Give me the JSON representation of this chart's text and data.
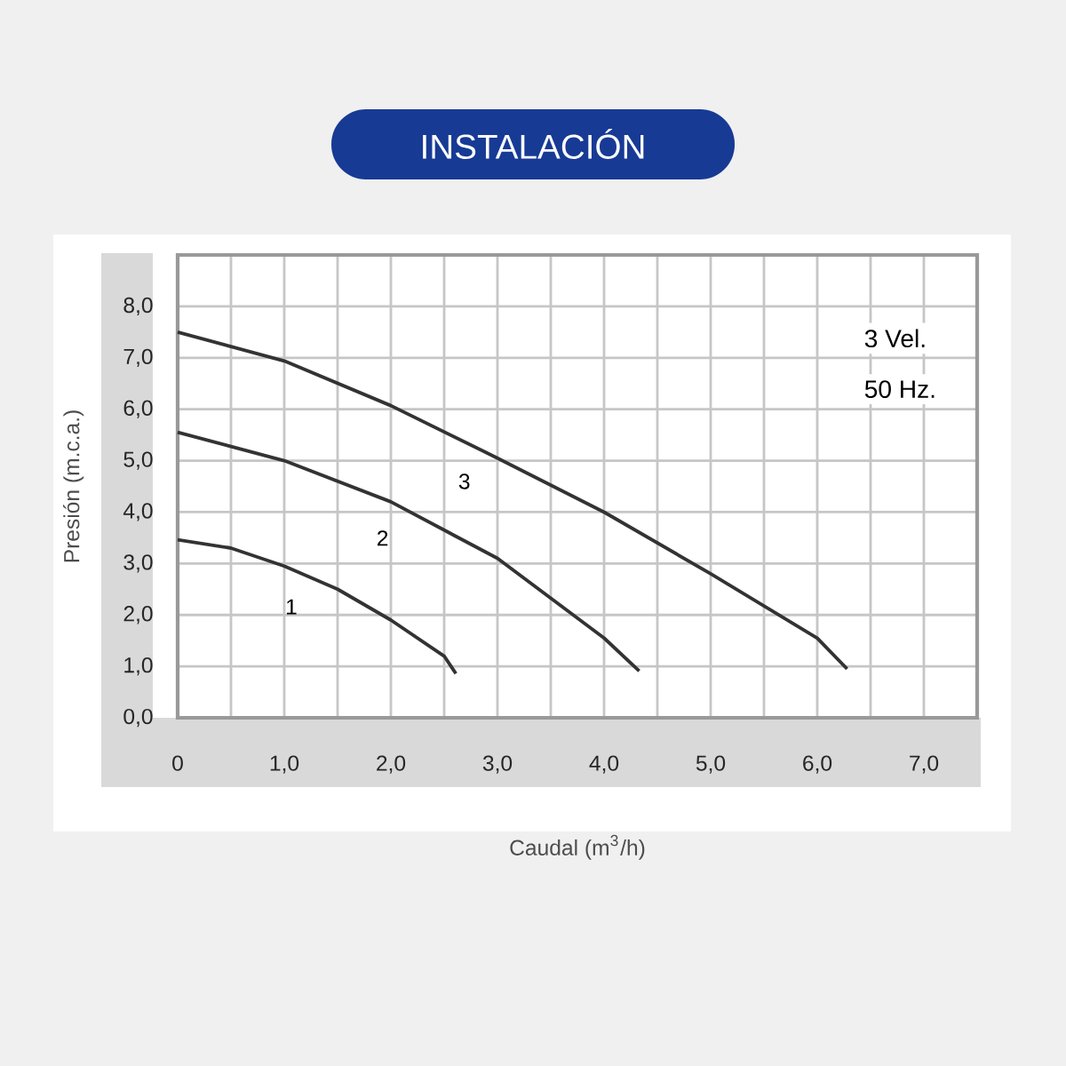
{
  "chart_data": {
    "type": "line",
    "title": "INSTALACIÓN",
    "xlabel": "Caudal (m$^{3}$/h)",
    "ylabel": "Presión (m.c.a.)",
    "series": [
      {
        "name": "1",
        "color": "#333333",
        "x": [
          0,
          0.5,
          1.0,
          1.5,
          2.0,
          2.5,
          2.61
        ],
        "values": [
          3.46,
          3.3,
          2.95,
          2.5,
          1.9,
          1.2,
          0.86
        ]
      },
      {
        "name": "2",
        "color": "#333333",
        "x": [
          0,
          1.0,
          2.0,
          3.0,
          4.0,
          4.33
        ],
        "values": [
          5.55,
          5.0,
          4.2,
          3.1,
          1.55,
          0.91
        ]
      },
      {
        "name": "3",
        "color": "#333333",
        "x": [
          0,
          1.0,
          2.0,
          3.0,
          4.0,
          5.0,
          6.0,
          6.28
        ],
        "values": [
          7.5,
          6.94,
          6.07,
          5.05,
          4.0,
          2.8,
          1.55,
          0.95
        ]
      }
    ],
    "xlim": [
      0,
      7.5
    ],
    "ylim": [
      0,
      9.0
    ],
    "xticks": [
      0,
      {
        "value": 1,
        "label": "1,0"
      },
      {
        "value": 2,
        "label": "2,0"
      },
      {
        "value": 3,
        "label": "3,0"
      },
      {
        "value": 4,
        "label": "4,0"
      },
      {
        "value": 5,
        "label": "5,0"
      },
      {
        "value": 6,
        "label": "6,0"
      },
      {
        "value": 7,
        "label": "7,0"
      }
    ],
    "yticks": [
      {
        "value": 0,
        "label": "0,0"
      },
      {
        "value": 1,
        "label": "1,0"
      },
      {
        "value": 2,
        "label": "2,0"
      },
      {
        "value": 3,
        "label": "3,0"
      },
      {
        "value": 4,
        "label": "4,0"
      },
      {
        "value": 5,
        "label": "5,0"
      },
      {
        "value": 6,
        "label": "6,0"
      },
      {
        "value": 7,
        "label": "7,0"
      },
      {
        "value": 8,
        "label": "8,0"
      }
    ],
    "grid": true,
    "marker": "none",
    "line_style": "solid",
    "annotations": [
      "3 Vel.",
      "50 Hz."
    ]
  }
}
